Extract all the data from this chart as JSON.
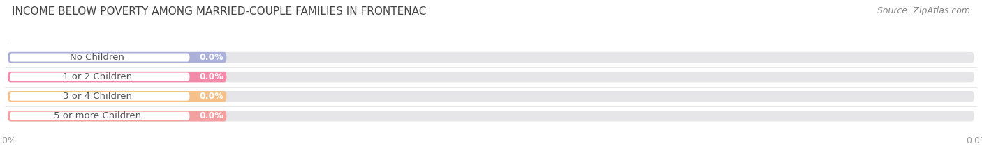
{
  "title": "INCOME BELOW POVERTY AMONG MARRIED-COUPLE FAMILIES IN FRONTENAC",
  "source": "Source: ZipAtlas.com",
  "categories": [
    "No Children",
    "1 or 2 Children",
    "3 or 4 Children",
    "5 or more Children"
  ],
  "values": [
    0.0,
    0.0,
    0.0,
    0.0
  ],
  "bar_colors": [
    "#aab0d8",
    "#f48aaa",
    "#f5c08a",
    "#f5a0a0"
  ],
  "bar_bg_color": "#e6e6e8",
  "background_color": "#ffffff",
  "title_fontsize": 11,
  "source_fontsize": 9,
  "label_fontsize": 9.5,
  "value_fontsize": 9,
  "tick_fontsize": 9,
  "tick_label_color": "#999999",
  "label_text_color": "#555555",
  "value_text_color": "#ffffff"
}
